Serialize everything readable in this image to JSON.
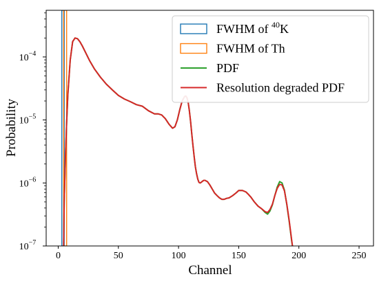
{
  "chart_data": {
    "type": "line",
    "xlabel": "Channel",
    "ylabel": "Probability",
    "xlim": [
      -10,
      262
    ],
    "ylim": [
      1e-07,
      0.00055
    ],
    "yscale": "log",
    "x_ticks": [
      0,
      50,
      100,
      150,
      200,
      250
    ],
    "y_ticks": [
      {
        "value": 1e-07,
        "base": "10",
        "exp": "−7"
      },
      {
        "value": 1e-06,
        "base": "10",
        "exp": "−6"
      },
      {
        "value": 1e-05,
        "base": "10",
        "exp": "−5"
      },
      {
        "value": 0.0001,
        "base": "10",
        "exp": "−4"
      }
    ],
    "grid": false,
    "legend_position": "top-right",
    "legend": [
      {
        "label_pre": "FWHM of ",
        "label_sup": "40",
        "label_post": "K",
        "kind": "box",
        "color": "#1f77b4"
      },
      {
        "label_pre": "FWHM of Th",
        "label_sup": "",
        "label_post": "",
        "kind": "box",
        "color": "#ff7f0e"
      },
      {
        "label_pre": "PDF",
        "label_sup": "",
        "label_post": "",
        "kind": "line",
        "color": "#2ca02c"
      },
      {
        "label_pre": "Resolution degraded PDF",
        "label_sup": "",
        "label_post": "",
        "kind": "line",
        "color": "#d62728"
      }
    ],
    "spans": [
      {
        "name": "FWHM of 40K",
        "x": [
          3,
          5
        ],
        "color": "#1f77b4"
      },
      {
        "name": "FWHM of Th",
        "x": [
          4.5,
          7
        ],
        "color": "#ff7f0e"
      }
    ],
    "series": [
      {
        "name": "PDF",
        "color": "#2ca02c",
        "x": [
          4.5,
          5,
          6,
          7,
          8,
          10,
          12,
          14,
          16,
          18,
          20,
          23,
          26,
          30,
          35,
          40,
          45,
          50,
          55,
          60,
          65,
          70,
          75,
          80,
          83,
          86,
          89,
          92,
          95,
          97,
          99,
          101,
          103,
          105,
          106,
          107,
          108,
          109,
          110,
          111,
          112,
          113,
          114,
          115,
          116,
          117,
          118,
          119,
          120,
          121,
          122,
          124,
          126,
          128,
          130,
          132,
          134,
          136,
          138,
          140,
          142,
          145,
          148,
          150,
          153,
          156,
          158,
          160,
          163,
          166,
          169,
          172,
          174,
          176,
          178,
          180,
          182,
          184,
          186,
          188,
          190,
          192,
          194,
          195
        ],
        "y": [
          1e-07,
          5e-07,
          2.5e-06,
          9e-06,
          2.5e-05,
          9e-05,
          0.000175,
          0.0002,
          0.000195,
          0.000175,
          0.00015,
          0.000115,
          8.8e-05,
          6.5e-05,
          4.8e-05,
          3.7e-05,
          3e-05,
          2.45e-05,
          2.15e-05,
          1.95e-05,
          1.75e-05,
          1.65e-05,
          1.4e-05,
          1.25e-05,
          1.25e-05,
          1.2e-05,
          1.05e-05,
          8.6e-06,
          7.4e-06,
          7.8e-06,
          1e-05,
          1.45e-05,
          2e-05,
          2.35e-05,
          2.4e-05,
          2.25e-05,
          1.9e-05,
          1.4e-05,
          9.5e-06,
          6e-06,
          3.9e-06,
          2.6e-06,
          1.8e-06,
          1.4e-06,
          1.15e-06,
          1.02e-06,
          1e-06,
          1.03e-06,
          1.07e-06,
          1.1e-06,
          1.1e-06,
          1.05e-06,
          9.3e-07,
          8e-07,
          6.9e-07,
          6.3e-07,
          5.8e-07,
          5.5e-07,
          5.5e-07,
          5.7e-07,
          5.8e-07,
          6.3e-07,
          7e-07,
          7.6e-07,
          7.6e-07,
          7.2e-07,
          6.6e-07,
          6e-07,
          5e-07,
          4.3e-07,
          3.9e-07,
          3.4e-07,
          3.2e-07,
          3.6e-07,
          4.5e-07,
          6.3e-07,
          8.6e-07,
          1.05e-06,
          1e-06,
          7.7e-07,
          4.5e-07,
          2.4e-07,
          1.2e-07,
          9e-08
        ]
      },
      {
        "name": "Resolution degraded PDF",
        "color": "#d62728",
        "x": [
          4.5,
          5,
          6,
          7,
          8,
          10,
          12,
          14,
          16,
          18,
          20,
          23,
          26,
          30,
          35,
          40,
          45,
          50,
          55,
          60,
          65,
          70,
          75,
          80,
          83,
          86,
          89,
          92,
          95,
          97,
          99,
          101,
          103,
          105,
          106,
          107,
          108,
          109,
          110,
          111,
          112,
          113,
          114,
          115,
          116,
          117,
          118,
          119,
          120,
          121,
          122,
          124,
          126,
          128,
          130,
          132,
          134,
          136,
          138,
          140,
          142,
          145,
          148,
          150,
          153,
          156,
          158,
          160,
          163,
          166,
          169,
          172,
          174,
          176,
          178,
          180,
          182,
          184,
          186,
          188,
          190,
          192,
          194,
          195
        ],
        "y": [
          1e-07,
          5e-07,
          2.5e-06,
          9e-06,
          2.5e-05,
          9e-05,
          0.000175,
          0.0002,
          0.000195,
          0.000175,
          0.00015,
          0.000115,
          8.8e-05,
          6.5e-05,
          4.8e-05,
          3.7e-05,
          3e-05,
          2.45e-05,
          2.15e-05,
          1.95e-05,
          1.75e-05,
          1.65e-05,
          1.4e-05,
          1.25e-05,
          1.25e-05,
          1.2e-05,
          1.05e-05,
          8.6e-06,
          7.4e-06,
          7.8e-06,
          1e-05,
          1.45e-05,
          2e-05,
          2.35e-05,
          2.4e-05,
          2.25e-05,
          1.9e-05,
          1.4e-05,
          9.5e-06,
          6e-06,
          3.9e-06,
          2.6e-06,
          1.8e-06,
          1.4e-06,
          1.15e-06,
          1.02e-06,
          1e-06,
          1.03e-06,
          1.07e-06,
          1.1e-06,
          1.1e-06,
          1.05e-06,
          9.3e-07,
          8e-07,
          6.9e-07,
          6.3e-07,
          5.8e-07,
          5.5e-07,
          5.5e-07,
          5.7e-07,
          5.8e-07,
          6.3e-07,
          7e-07,
          7.6e-07,
          7.6e-07,
          7.2e-07,
          6.6e-07,
          6e-07,
          5e-07,
          4.3e-07,
          3.9e-07,
          3.5e-07,
          3.4e-07,
          3.8e-07,
          4.6e-07,
          6.3e-07,
          8.2e-07,
          9.5e-07,
          9.3e-07,
          7.5e-07,
          4.6e-07,
          2.5e-07,
          1.25e-07,
          9e-08
        ]
      }
    ]
  }
}
